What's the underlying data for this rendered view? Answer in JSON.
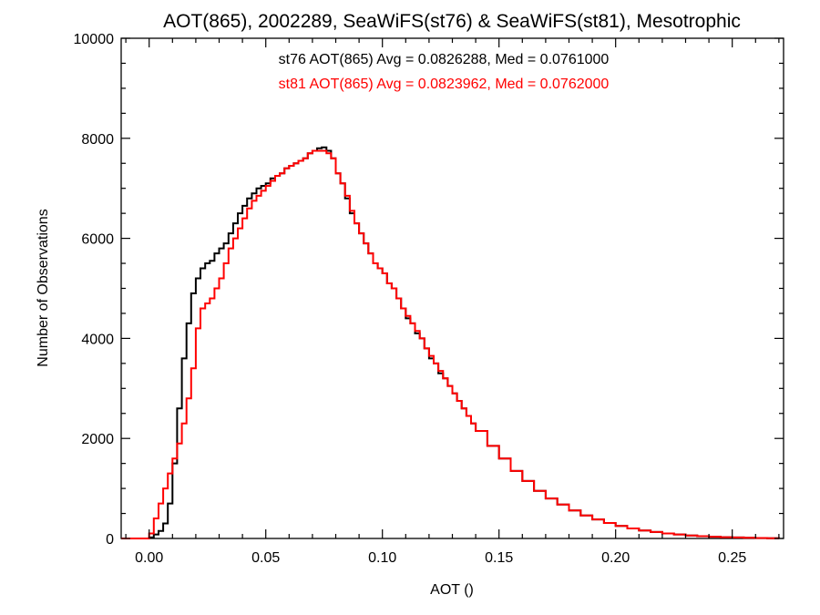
{
  "chart_data": {
    "type": "line",
    "step": true,
    "title": "AOT(865), 2002289, SeaWiFS(st76) & SeaWiFS(st81), Mesotrophic",
    "xlabel": "AOT ()",
    "ylabel": "Number of Observations",
    "xlim": [
      -0.012,
      0.272
    ],
    "ylim": [
      0,
      10000
    ],
    "xticks": [
      0.0,
      0.05,
      0.1,
      0.15,
      0.2,
      0.25
    ],
    "xtick_labels": [
      "0.00",
      "0.05",
      "0.10",
      "0.15",
      "0.20",
      "0.25"
    ],
    "yticks": [
      0,
      2000,
      4000,
      6000,
      8000,
      10000
    ],
    "ytick_labels": [
      "0",
      "2000",
      "4000",
      "6000",
      "8000",
      "10000"
    ],
    "grid": false,
    "annotations": [
      {
        "text": "st76 AOT(865) Avg = 0.0826288, Med = 0.0761000",
        "color": "#000000"
      },
      {
        "text": "st81 AOT(865) Avg = 0.0823962, Med = 0.0762000",
        "color": "#ff0000"
      }
    ],
    "series": [
      {
        "color": "#000000",
        "x": [
          -0.012,
          -0.01,
          -0.005,
          0.0,
          0.002,
          0.004,
          0.006,
          0.008,
          0.01,
          0.012,
          0.014,
          0.016,
          0.018,
          0.02,
          0.022,
          0.024,
          0.026,
          0.028,
          0.03,
          0.032,
          0.034,
          0.036,
          0.038,
          0.04,
          0.042,
          0.044,
          0.046,
          0.048,
          0.05,
          0.052,
          0.054,
          0.056,
          0.058,
          0.06,
          0.062,
          0.064,
          0.066,
          0.068,
          0.07,
          0.072,
          0.074,
          0.076,
          0.078,
          0.08,
          0.082,
          0.084,
          0.086,
          0.088,
          0.09,
          0.092,
          0.094,
          0.096,
          0.098,
          0.1,
          0.102,
          0.104,
          0.106,
          0.108,
          0.11,
          0.112,
          0.114,
          0.116,
          0.118,
          0.12,
          0.122,
          0.124,
          0.126,
          0.128,
          0.13,
          0.132,
          0.134,
          0.136,
          0.138,
          0.14,
          0.145,
          0.15,
          0.155,
          0.16,
          0.165,
          0.17,
          0.175,
          0.18,
          0.185,
          0.19,
          0.195,
          0.2,
          0.205,
          0.21,
          0.215,
          0.22,
          0.225,
          0.23,
          0.235,
          0.24,
          0.245,
          0.25,
          0.255,
          0.26,
          0.265,
          0.27
        ],
        "y": [
          0,
          0,
          0,
          20,
          80,
          150,
          300,
          700,
          1500,
          2600,
          3600,
          4300,
          4900,
          5200,
          5400,
          5500,
          5550,
          5700,
          5800,
          5900,
          6100,
          6300,
          6500,
          6650,
          6800,
          6900,
          7000,
          7050,
          7100,
          7200,
          7250,
          7300,
          7400,
          7450,
          7500,
          7550,
          7600,
          7700,
          7750,
          7800,
          7820,
          7750,
          7600,
          7300,
          7100,
          6800,
          6500,
          6300,
          6100,
          5900,
          5700,
          5500,
          5400,
          5300,
          5100,
          5000,
          4800,
          4600,
          4400,
          4300,
          4100,
          4000,
          3800,
          3600,
          3500,
          3300,
          3200,
          3050,
          2900,
          2750,
          2600,
          2450,
          2300,
          2150,
          1850,
          1600,
          1350,
          1150,
          950,
          800,
          680,
          560,
          460,
          380,
          310,
          250,
          200,
          160,
          130,
          100,
          80,
          60,
          45,
          35,
          25,
          20,
          15,
          10,
          5,
          0
        ]
      },
      {
        "color": "#ff0000",
        "x": [
          -0.012,
          -0.01,
          -0.005,
          0.0,
          0.002,
          0.004,
          0.006,
          0.008,
          0.01,
          0.012,
          0.014,
          0.016,
          0.018,
          0.02,
          0.022,
          0.024,
          0.026,
          0.028,
          0.03,
          0.032,
          0.034,
          0.036,
          0.038,
          0.04,
          0.042,
          0.044,
          0.046,
          0.048,
          0.05,
          0.052,
          0.054,
          0.056,
          0.058,
          0.06,
          0.062,
          0.064,
          0.066,
          0.068,
          0.07,
          0.072,
          0.074,
          0.076,
          0.078,
          0.08,
          0.082,
          0.084,
          0.086,
          0.088,
          0.09,
          0.092,
          0.094,
          0.096,
          0.098,
          0.1,
          0.102,
          0.104,
          0.106,
          0.108,
          0.11,
          0.112,
          0.114,
          0.116,
          0.118,
          0.12,
          0.122,
          0.124,
          0.126,
          0.128,
          0.13,
          0.132,
          0.134,
          0.136,
          0.138,
          0.14,
          0.145,
          0.15,
          0.155,
          0.16,
          0.165,
          0.17,
          0.175,
          0.18,
          0.185,
          0.19,
          0.195,
          0.2,
          0.205,
          0.21,
          0.215,
          0.22,
          0.225,
          0.23,
          0.235,
          0.24,
          0.245,
          0.25,
          0.255,
          0.26,
          0.265,
          0.27
        ],
        "y": [
          0,
          0,
          0,
          100,
          400,
          700,
          1000,
          1300,
          1600,
          1900,
          2300,
          2800,
          3400,
          4200,
          4600,
          4700,
          4800,
          5000,
          5200,
          5500,
          5800,
          6000,
          6200,
          6400,
          6600,
          6750,
          6850,
          6950,
          7050,
          7150,
          7250,
          7300,
          7400,
          7450,
          7500,
          7550,
          7600,
          7700,
          7750,
          7750,
          7750,
          7700,
          7600,
          7300,
          7100,
          6850,
          6550,
          6300,
          6100,
          5900,
          5700,
          5500,
          5400,
          5300,
          5100,
          5000,
          4800,
          4600,
          4450,
          4300,
          4150,
          4000,
          3800,
          3650,
          3500,
          3350,
          3200,
          3050,
          2900,
          2750,
          2600,
          2450,
          2300,
          2150,
          1850,
          1600,
          1350,
          1150,
          950,
          800,
          680,
          560,
          460,
          380,
          310,
          250,
          200,
          160,
          130,
          100,
          80,
          60,
          45,
          35,
          25,
          20,
          15,
          10,
          5,
          0
        ]
      }
    ]
  }
}
